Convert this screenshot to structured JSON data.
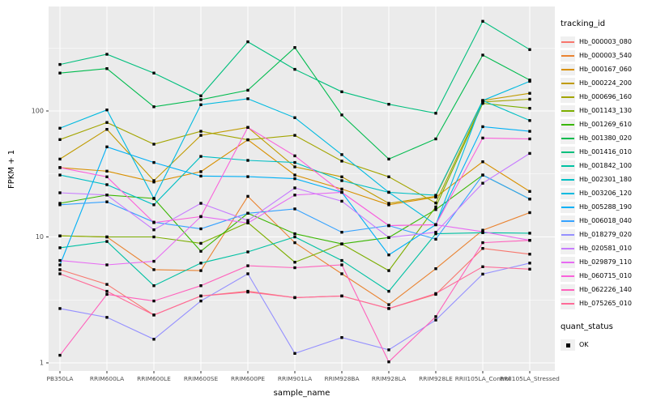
{
  "chart_data": {
    "type": "line",
    "title": "",
    "xlabel": "sample_name",
    "ylabel": "FPKM + 1",
    "y_scale": "log10",
    "ylim": [
      0.9,
      650
    ],
    "y_ticks": [
      1,
      10,
      100
    ],
    "y_minor_ticks": [
      3.1623,
      31.623,
      316.23
    ],
    "grid": true,
    "legend_position": "right",
    "panel_bg": "#EBEBEB",
    "grid_color": "#FFFFFF",
    "axis_text_color": "#4D4D4D",
    "tick_color": "#333333",
    "point": {
      "shape": "square",
      "color": "#000000",
      "size": 3.4
    },
    "legend_title": "tracking_id",
    "quant_legend": {
      "title": "quant_status",
      "items": [
        {
          "label": "OK",
          "shape": "square",
          "color": "#000000"
        }
      ]
    },
    "categories": [
      "PB350LA",
      "RRIM600LA",
      "RRIM600LE",
      "RRIM600SE",
      "RRIM600PE",
      "RRIM901LA",
      "RRIM928BA",
      "RRIM928LA",
      "RRIM928LE",
      "RRII105LA_Control",
      "RRII105LA_Stressed"
    ],
    "series": [
      {
        "name": "Hb_000003_080",
        "color": "#F8766D",
        "values": [
          5.5,
          4.2,
          2.4,
          3.4,
          3.7,
          3.3,
          3.4,
          2.7,
          3.5,
          8.1,
          7.3
        ]
      },
      {
        "name": "Hb_000003_540",
        "color": "#EA8331",
        "values": [
          10.2,
          10.0,
          5.5,
          5.4,
          21.0,
          9.0,
          5.1,
          2.9,
          5.6,
          11.3,
          15.6
        ]
      },
      {
        "name": "Hb_000167_060",
        "color": "#D89000",
        "values": [
          35.5,
          33.3,
          27.3,
          33.0,
          59.0,
          31.0,
          24.0,
          18.0,
          20.7,
          39.5,
          23.0
        ]
      },
      {
        "name": "Hb_000224_200",
        "color": "#C09B00",
        "values": [
          41.5,
          71.5,
          28.0,
          64.0,
          74.0,
          36.0,
          30.0,
          18.5,
          21.0,
          121.0,
          138.0
        ]
      },
      {
        "name": "Hb_000696_160",
        "color": "#A3A500",
        "values": [
          59.3,
          81.0,
          54.5,
          69.0,
          59.0,
          64.0,
          40.0,
          30.0,
          18.6,
          118.0,
          124.0
        ]
      },
      {
        "name": "Hb_001143_130",
        "color": "#7CAE00",
        "values": [
          10.2,
          10.0,
          10.0,
          8.9,
          13.0,
          6.3,
          8.8,
          5.4,
          17.3,
          115.0,
          105.0
        ]
      },
      {
        "name": "Hb_001269_610",
        "color": "#39B600",
        "values": [
          18.5,
          21.5,
          20.2,
          7.7,
          15.4,
          10.6,
          8.8,
          9.9,
          16.5,
          31.0,
          20.0
        ]
      },
      {
        "name": "Hb_001380_020",
        "color": "#00BB4E",
        "values": [
          200,
          217,
          108,
          123,
          146,
          319,
          93,
          41.5,
          60,
          278,
          176
        ]
      },
      {
        "name": "Hb_001416_010",
        "color": "#00BF7D",
        "values": [
          234,
          282,
          200,
          132,
          354,
          214,
          142,
          113,
          96,
          515,
          307
        ]
      },
      {
        "name": "Hb_001842_100",
        "color": "#00C1A3",
        "values": [
          8.2,
          9.2,
          4.1,
          6.2,
          7.6,
          10.0,
          6.5,
          3.7,
          10.6,
          10.8,
          10.7
        ]
      },
      {
        "name": "Hb_002301_180",
        "color": "#00BFC4",
        "values": [
          31.0,
          26.0,
          18.0,
          43.6,
          40.5,
          39.0,
          28.0,
          22.6,
          21.4,
          121.0,
          84.0
        ]
      },
      {
        "name": "Hb_003206_120",
        "color": "#00BAE0",
        "values": [
          73.0,
          102.0,
          20.2,
          112.0,
          125.0,
          88.5,
          45.0,
          22.6,
          12.5,
          121.0,
          172.0
        ]
      },
      {
        "name": "Hb_005288_190",
        "color": "#00B0F6",
        "values": [
          6.0,
          51.9,
          39.0,
          30.4,
          30.1,
          29.0,
          22.6,
          7.2,
          12.5,
          75.0,
          69.0
        ]
      },
      {
        "name": "Hb_006018_040",
        "color": "#35A2FF",
        "values": [
          18.0,
          19.0,
          13.1,
          11.6,
          15.4,
          16.7,
          10.9,
          12.3,
          9.6,
          31.0,
          20.0
        ]
      },
      {
        "name": "Hb_018279_020",
        "color": "#9590FF",
        "values": [
          2.7,
          2.3,
          1.54,
          3.1,
          5.1,
          1.19,
          1.59,
          1.27,
          2.19,
          5.07,
          6.2
        ]
      },
      {
        "name": "Hb_020581_010",
        "color": "#C77CFF",
        "values": [
          22.4,
          21.5,
          11.4,
          18.5,
          13.5,
          24.5,
          19.2,
          9.9,
          10.9,
          26.7,
          46.0
        ]
      },
      {
        "name": "Hb_029879_110",
        "color": "#E76BF3",
        "values": [
          6.5,
          6.0,
          6.4,
          14.5,
          12.9,
          21.5,
          22.6,
          12.3,
          12.5,
          11.0,
          9.4
        ]
      },
      {
        "name": "Hb_060715_010",
        "color": "#FA62DB",
        "values": [
          35.5,
          30.0,
          13.0,
          14.5,
          74.0,
          44.0,
          22.6,
          12.3,
          12.5,
          61.0,
          60.0
        ]
      },
      {
        "name": "Hb_062226_140",
        "color": "#FF62BC",
        "values": [
          1.15,
          3.5,
          3.1,
          4.1,
          5.9,
          5.7,
          6.0,
          1.02,
          2.33,
          9.0,
          9.4
        ]
      },
      {
        "name": "Hb_075265_010",
        "color": "#FF6A98",
        "values": [
          5.1,
          3.7,
          2.4,
          3.4,
          3.65,
          3.3,
          3.4,
          2.7,
          3.55,
          5.8,
          5.55
        ]
      }
    ]
  }
}
